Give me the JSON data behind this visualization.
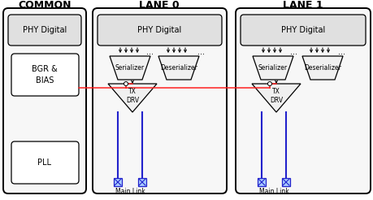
{
  "bg_color": "#ffffff",
  "title_common": "COMMON",
  "title_lane0": "LANE 0",
  "title_lane1": "LANE 1",
  "title_fontsize": 9,
  "phy_digital_label": "PHY Digital",
  "phy_digital_fontsize": 7,
  "bgr_label": "BGR &\nBIAS",
  "pll_label": "PLL",
  "serializer_label": "Serializer",
  "deserializer_label": "Deserializer",
  "txdrv_label": "TX\nDRV",
  "main_link_label": "Main Link",
  "red_color": "#ff2020",
  "blue_color": "#2222cc",
  "black_color": "#000000",
  "box_face": "#f5f5f5",
  "inner_face": "#ffffff",
  "trap_face": "#f0f0f0",
  "phy_face": "#e0e0e0",
  "lw_main": 1.4,
  "lw_inner": 0.9
}
